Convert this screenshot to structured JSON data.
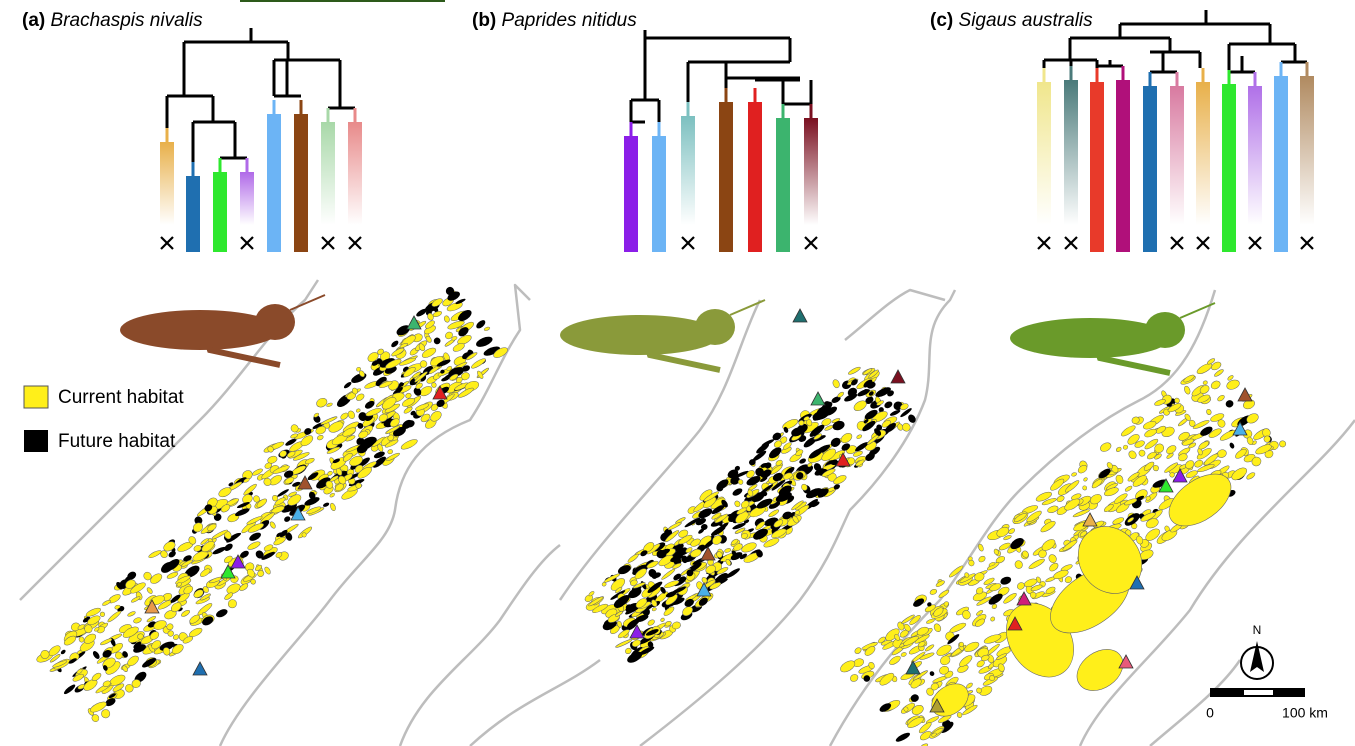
{
  "panels": [
    {
      "label": "(a)",
      "species": "Brachaspis nivalis"
    },
    {
      "label": "(b)",
      "species": "Paprides nitidus"
    },
    {
      "label": "(c)",
      "species": "Sigaus australis"
    }
  ],
  "legend": [
    {
      "label": "Current habitat"
    },
    {
      "label": "Future habitat"
    }
  ],
  "compass": "N",
  "scale_bar": {
    "start": "0",
    "end": "100 km"
  }
}
